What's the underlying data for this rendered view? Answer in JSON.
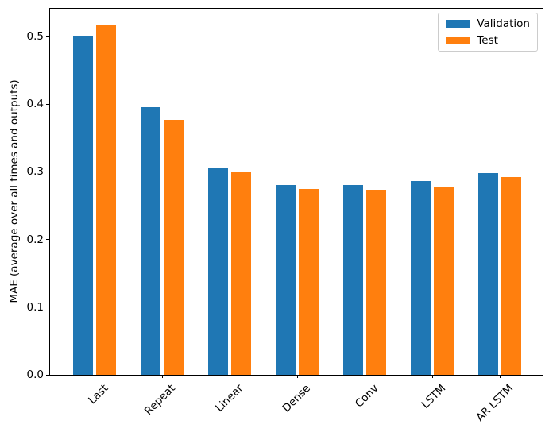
{
  "chart_data": {
    "type": "bar",
    "title": "",
    "categories": [
      "Last",
      "Repeat",
      "Linear",
      "Dense",
      "Conv",
      "LSTM",
      "AR LSTM"
    ],
    "series": [
      {
        "name": "Validation",
        "color": "#1f77b4",
        "values": [
          0.501,
          0.395,
          0.306,
          0.281,
          0.281,
          0.286,
          0.298
        ]
      },
      {
        "name": "Test",
        "color": "#ff7f0e",
        "values": [
          0.516,
          0.377,
          0.299,
          0.275,
          0.273,
          0.277,
          0.292
        ]
      }
    ],
    "xlabel": "",
    "ylabel": "MAE (average over all times and outputs)",
    "yticks": [
      0.0,
      0.1,
      0.2,
      0.3,
      0.4,
      0.5
    ],
    "ylim": [
      0,
      0.541
    ],
    "xtick_rotation": 45,
    "grid": false,
    "legend_position": "upper right",
    "axis_color": "#000000",
    "background_color": "#ffffff"
  }
}
